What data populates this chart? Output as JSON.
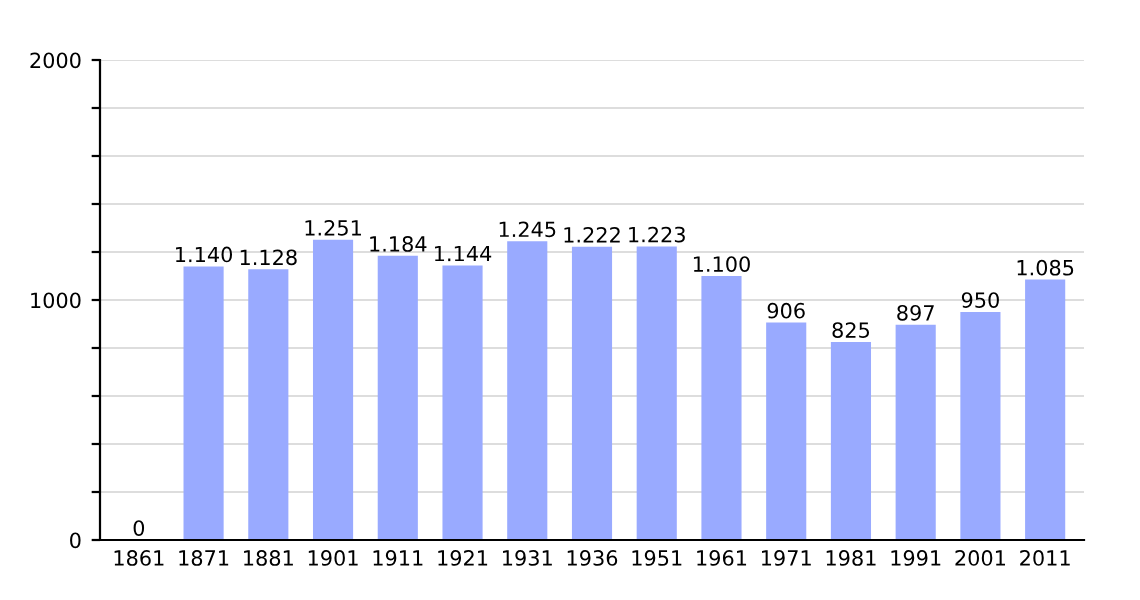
{
  "chart_data": {
    "type": "bar",
    "categories": [
      "1861",
      "1871",
      "1881",
      "1901",
      "1911",
      "1921",
      "1931",
      "1936",
      "1951",
      "1961",
      "1971",
      "1981",
      "1991",
      "2001",
      "2011"
    ],
    "values": [
      0,
      1140,
      1128,
      1251,
      1184,
      1144,
      1245,
      1222,
      1223,
      1100,
      906,
      825,
      897,
      950,
      1085
    ],
    "value_labels": [
      "0",
      "1.140",
      "1.128",
      "1.251",
      "1.184",
      "1.144",
      "1.245",
      "1.222",
      "1.223",
      "1.100",
      "906",
      "825",
      "897",
      "950",
      "1.085"
    ],
    "color": "#99aaff",
    "ylim": [
      0,
      2000
    ],
    "yticks": [
      0,
      {
        "value": 200,
        "label": null
      },
      {
        "value": 400,
        "label": null
      },
      {
        "value": 600,
        "label": null
      },
      {
        "value": 800,
        "label": null
      },
      1000,
      {
        "value": 1200,
        "label": null
      },
      {
        "value": 1400,
        "label": null
      },
      {
        "value": 1600,
        "label": null
      },
      {
        "value": 1800,
        "label": null
      },
      2000
    ],
    "grid": "y",
    "legend": false
  }
}
